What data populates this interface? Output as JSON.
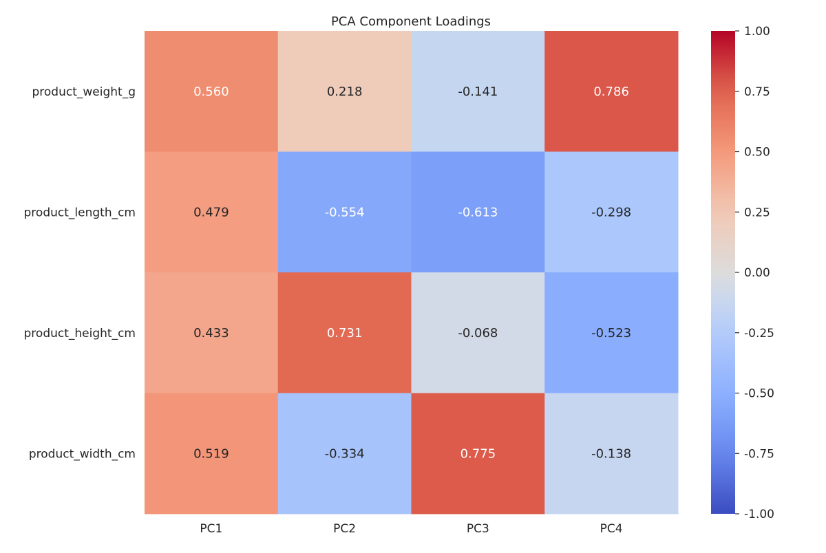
{
  "chart_data": {
    "type": "heatmap",
    "title": "PCA Component Loadings",
    "columns": [
      "PC1",
      "PC2",
      "PC3",
      "PC4"
    ],
    "rows": [
      "product_weight_g",
      "product_length_cm",
      "product_height_cm",
      "product_width_cm"
    ],
    "values": [
      [
        0.56,
        0.218,
        -0.141,
        0.786
      ],
      [
        0.479,
        -0.554,
        -0.613,
        -0.298
      ],
      [
        0.433,
        0.731,
        -0.068,
        -0.523
      ],
      [
        0.519,
        -0.334,
        0.775,
        -0.138
      ]
    ],
    "value_format": "0.000",
    "colormap": "coolwarm",
    "vmin": -1.0,
    "vmax": 1.0,
    "colorbar_ticks": [
      "1.00",
      "0.75",
      "0.50",
      "0.25",
      "0.00",
      "-0.25",
      "-0.50",
      "-0.75",
      "-1.00"
    ],
    "colors": {
      "low": "#3b4cc0",
      "mid": "#dddcdc",
      "high": "#b40426"
    }
  }
}
